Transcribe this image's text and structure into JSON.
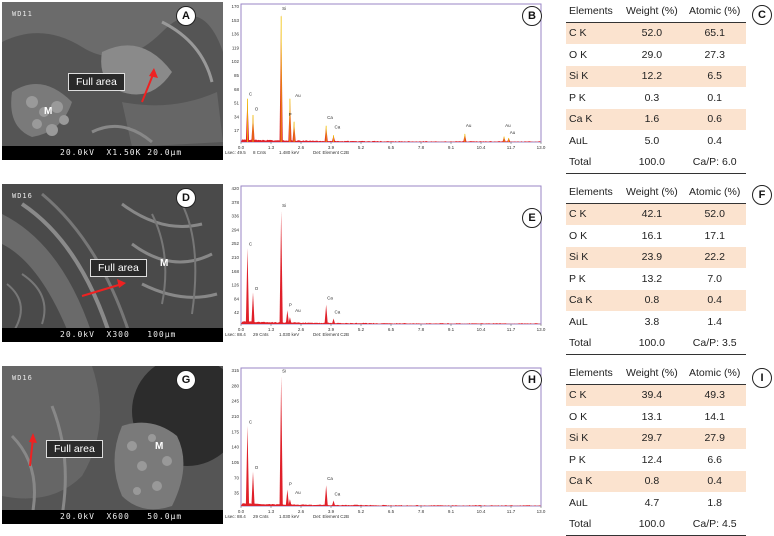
{
  "panels": [
    {
      "sem": {
        "label": "A",
        "wd": "WD11",
        "bar": "20.0kV  X1.50K 20.0μm",
        "full_area": "Full area",
        "marker": "M"
      },
      "eds": {
        "label": "B",
        "y_ticks": [
          "170",
          "153",
          "136",
          "119",
          "102",
          "85",
          "68",
          "51",
          "34",
          "17"
        ],
        "x_ticks": [
          "0.0",
          "1.3",
          "2.6",
          "3.9",
          "5.2",
          "6.5",
          "7.8",
          "9.1",
          "10.4",
          "11.7",
          "13.0"
        ],
        "footer": [
          "Lsec: 49.5",
          "8 Cnts",
          "1.480 keV",
          "Det: Element C2B"
        ],
        "peak_labels": [
          "C",
          "O",
          "P",
          "Si",
          "Au",
          "Ca",
          "Ca",
          "Au",
          "Au",
          "Au"
        ]
      },
      "table": {
        "label": "C"
      }
    },
    {
      "sem": {
        "label": "D",
        "wd": "WD16",
        "bar": "20.0kV  X300   100μm",
        "full_area": "Full area",
        "marker": "M"
      },
      "eds": {
        "label": "E",
        "y_ticks": [
          "420",
          "378",
          "336",
          "294",
          "252",
          "210",
          "168",
          "126",
          "84",
          "42"
        ],
        "x_ticks": [
          "0.0",
          "1.3",
          "2.6",
          "3.9",
          "5.2",
          "6.5",
          "7.8",
          "9.1",
          "10.4",
          "11.7",
          "13.0"
        ],
        "footer": [
          "Lsec: 88.4",
          "29 Cnts",
          "1.030 keV",
          "Det: Element C2B"
        ],
        "peak_labels": [
          "C",
          "O",
          "P",
          "Si",
          "Au",
          "Ca",
          "Ca"
        ]
      },
      "table": {
        "label": "F"
      }
    },
    {
      "sem": {
        "label": "G",
        "wd": "WD16",
        "bar": "20.0kV  X600   50.0μm",
        "full_area": "Full area",
        "marker": "M"
      },
      "eds": {
        "label": "H",
        "y_ticks": [
          "315",
          "280",
          "245",
          "210",
          "175",
          "140",
          "105",
          "70",
          "35"
        ],
        "x_ticks": [
          "0.0",
          "1.3",
          "2.6",
          "3.9",
          "5.2",
          "6.5",
          "7.8",
          "9.1",
          "10.4",
          "11.7",
          "13.0"
        ],
        "footer": [
          "Lsec: 88.4",
          "29 Cnts",
          "1.030 keV",
          "Det: Element C2B"
        ],
        "peak_labels": [
          "C",
          "O",
          "P",
          "Si",
          "Au",
          "Ca",
          "Ca"
        ]
      },
      "table": {
        "label": "I"
      }
    }
  ],
  "table_header": {
    "elements": "Elements",
    "weight": "Weight (%)",
    "atomic": "Atomic (%)"
  },
  "element_names": [
    "C K",
    "O K",
    "Si K",
    "P K",
    "Ca K",
    "AuL",
    "Total"
  ],
  "tables": [
    {
      "weight": [
        "52.0",
        "29.0",
        "12.2",
        "0.3",
        "1.6",
        "5.0",
        "100.0"
      ],
      "atomic": [
        "65.1",
        "27.3",
        "6.5",
        "0.1",
        "0.6",
        "0.4",
        "Ca/P: 6.0"
      ]
    },
    {
      "weight": [
        "42.1",
        "16.1",
        "23.9",
        "13.2",
        "0.8",
        "3.8",
        "100.0"
      ],
      "atomic": [
        "52.0",
        "17.1",
        "22.2",
        "7.0",
        "0.4",
        "1.4",
        "Ca/P: 3.5"
      ]
    },
    {
      "weight": [
        "39.4",
        "13.1",
        "29.7",
        "12.4",
        "0.8",
        "4.7",
        "100.0"
      ],
      "atomic": [
        "49.3",
        "14.1",
        "27.9",
        "6.6",
        "0.4",
        "1.8",
        "Ca/P: 4.5"
      ]
    }
  ],
  "colors": {
    "spectrum": "#e0202a",
    "overlay": "#f0c000",
    "frame": "#9a86c6",
    "row_shade": "#fbe3cf"
  }
}
